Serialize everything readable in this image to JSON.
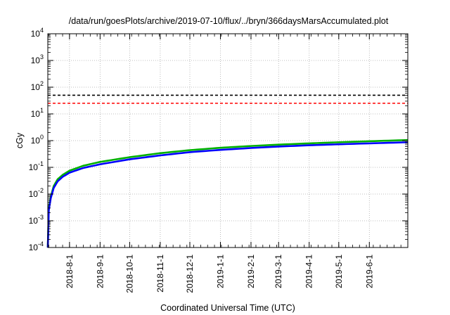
{
  "chart_data": {
    "type": "line",
    "title": "/data/run/goesPlots/archive/2019-07-10/flux/../bryn/366daysMarsAccumulated.plot",
    "xlabel": "Coordinated Universal Time (UTC)",
    "ylabel": "cGy",
    "yscale": "log",
    "ylim": [
      0.0001,
      10000
    ],
    "xlim": [
      "2018-07-10",
      "2019-07-10"
    ],
    "grid": true,
    "ytick_exponents": [
      "-4",
      "-3",
      "-2",
      "-1",
      "0",
      "1",
      "2",
      "3",
      "4"
    ],
    "ytick_base": "10",
    "xticks": [
      "2018-8-1",
      "2018-9-1",
      "2018-10-1",
      "2018-11-1",
      "2018-12-1",
      "2019-1-1",
      "2019-2-1",
      "2019-3-1",
      "2019-4-1",
      "2019-5-1",
      "2019-6-1"
    ],
    "xtick_dates": [
      "2018-08-01",
      "2018-09-01",
      "2018-10-01",
      "2018-11-01",
      "2018-12-01",
      "2019-01-01",
      "2019-02-01",
      "2019-03-01",
      "2019-04-01",
      "2019-05-01",
      "2019-06-01"
    ],
    "hlines": [
      {
        "y": 50,
        "color": "#000000",
        "style": "dashed"
      },
      {
        "y": 25,
        "color": "#ff0000",
        "style": "dashed"
      }
    ],
    "series": [
      {
        "color": "#00b000",
        "x": [
          "2018-07-10",
          "2018-07-11",
          "2018-07-13",
          "2018-07-16",
          "2018-07-20",
          "2018-07-25",
          "2018-08-01",
          "2018-08-15",
          "2018-09-01",
          "2018-10-01",
          "2018-11-01",
          "2018-12-01",
          "2019-01-01",
          "2019-02-01",
          "2019-03-01",
          "2019-04-01",
          "2019-05-01",
          "2019-06-01",
          "2019-07-10"
        ],
        "y": [
          0.0001,
          0.003,
          0.008,
          0.02,
          0.036,
          0.052,
          0.075,
          0.115,
          0.16,
          0.24,
          0.34,
          0.44,
          0.54,
          0.63,
          0.71,
          0.79,
          0.87,
          0.95,
          1.05
        ]
      },
      {
        "color": "#0000ff",
        "x": [
          "2018-07-10",
          "2018-07-11",
          "2018-07-13",
          "2018-07-16",
          "2018-07-20",
          "2018-07-25",
          "2018-08-01",
          "2018-08-15",
          "2018-09-01",
          "2018-10-01",
          "2018-11-01",
          "2018-12-01",
          "2019-01-01",
          "2019-02-01",
          "2019-03-01",
          "2019-04-01",
          "2019-05-01",
          "2019-06-01",
          "2019-07-10"
        ],
        "y": [
          0.0001,
          0.0025,
          0.007,
          0.017,
          0.03,
          0.044,
          0.063,
          0.095,
          0.13,
          0.2,
          0.28,
          0.37,
          0.45,
          0.53,
          0.6,
          0.67,
          0.73,
          0.79,
          0.87
        ]
      }
    ]
  }
}
